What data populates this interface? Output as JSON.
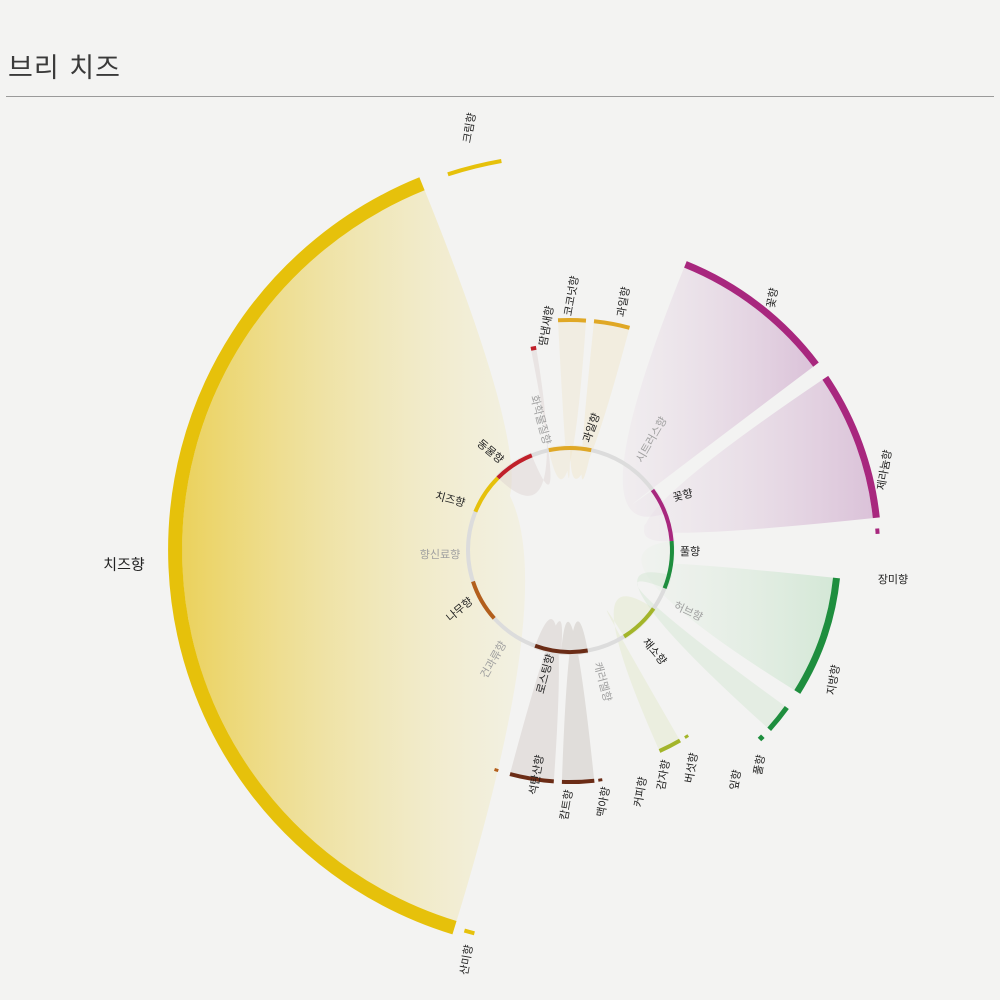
{
  "page": {
    "title": "브리 치즈"
  },
  "colors": {
    "cheese": "#e6c10b",
    "floral": "#a8277e",
    "green": "#1e8e3e",
    "vegetal": "#a3b52a",
    "fruit": "#e0a825",
    "animal": "#c0202a",
    "wood": "#b35f1c",
    "roast": "#6b2c16",
    "spice_gray": "#cfcfcf"
  },
  "chart_data": {
    "type": "chord",
    "title": "브리 치즈",
    "inner": [
      {
        "key": "fruit",
        "label": "과일향",
        "start": -12,
        "end": 12,
        "color": "#e0a825",
        "muted": false
      },
      {
        "key": "citrus",
        "label": "시트러스향",
        "start": 12,
        "end": 42,
        "color": "#d8d8d8",
        "muted": true
      },
      {
        "key": "flower",
        "label": "꽃향",
        "start": 54,
        "end": 85,
        "color": "#a8277e",
        "muted": false
      },
      {
        "key": "grass",
        "label": "풀향",
        "start": 85,
        "end": 112,
        "color": "#1e8e3e",
        "muted": false
      },
      {
        "key": "herb",
        "label": "허브향",
        "start": 112,
        "end": 125,
        "color": "#d8d8d8",
        "muted": true
      },
      {
        "key": "veg",
        "label": "채소향",
        "start": 125,
        "end": 148,
        "color": "#a3b52a",
        "muted": false
      },
      {
        "key": "caramel",
        "label": "캐러멜향",
        "start": 148,
        "end": 168,
        "color": "#d8d8d8",
        "muted": true
      },
      {
        "key": "roast",
        "label": "로스팅향",
        "start": 170,
        "end": 200,
        "color": "#6b2c16",
        "muted": false
      },
      {
        "key": "dryfruit",
        "label": "건과류향",
        "start": 200,
        "end": 225,
        "color": "#d8d8d8",
        "muted": true
      },
      {
        "key": "wood",
        "label": "나무향",
        "start": 228,
        "end": 252,
        "color": "#b35f1c",
        "muted": false
      },
      {
        "key": "spice",
        "label": "향신료향",
        "start": 252,
        "end": 290,
        "color": "#d8d8d8",
        "muted": true
      },
      {
        "key": "cheese",
        "label": "치즈향",
        "start": 292,
        "end": 315,
        "color": "#e6c10b",
        "muted": false
      },
      {
        "key": "animal",
        "label": "동물향",
        "start": 315,
        "end": 338,
        "color": "#c0202a",
        "muted": false
      },
      {
        "key": "chem",
        "label": "화학물질향",
        "start": 338,
        "end": 348,
        "color": "#d8d8d8",
        "muted": true
      }
    ],
    "outer": [
      {
        "key": "cheese_big",
        "label": "치즈향",
        "color": "#e6c10b",
        "emph": true
      },
      {
        "key": "cream",
        "label": "크림향",
        "color": "#e6c10b"
      },
      {
        "key": "sour",
        "label": "산미향",
        "color": "#e6c10b"
      },
      {
        "key": "sweat",
        "label": "땀냄새향",
        "color": "#c0202a"
      },
      {
        "key": "coconut",
        "label": "코코넛향",
        "color": "#e0a825"
      },
      {
        "key": "fruit2",
        "label": "과일향",
        "color": "#e0a825"
      },
      {
        "key": "floral",
        "label": "꽃향",
        "color": "#a8277e"
      },
      {
        "key": "geranium",
        "label": "제라늄향",
        "color": "#a8277e"
      },
      {
        "key": "rose",
        "label": "장미향",
        "color": "#a8277e"
      },
      {
        "key": "fatty",
        "label": "지방향",
        "color": "#1e8e3e"
      },
      {
        "key": "grass2",
        "label": "풀향",
        "color": "#1e8e3e"
      },
      {
        "key": "leaf",
        "label": "잎향",
        "color": "#1e8e3e"
      },
      {
        "key": "mushroom",
        "label": "버섯향",
        "color": "#a3b52a"
      },
      {
        "key": "potato",
        "label": "감자향",
        "color": "#a3b52a"
      },
      {
        "key": "coffee",
        "label": "커피향",
        "color": "#6b2c16"
      },
      {
        "key": "malt",
        "label": "맥아향",
        "color": "#6b2c16"
      },
      {
        "key": "caramel2",
        "label": "캄트향",
        "color": "#6b2c16"
      },
      {
        "key": "smoke",
        "label": "석탄산향",
        "color": "#b35f1c"
      }
    ]
  }
}
